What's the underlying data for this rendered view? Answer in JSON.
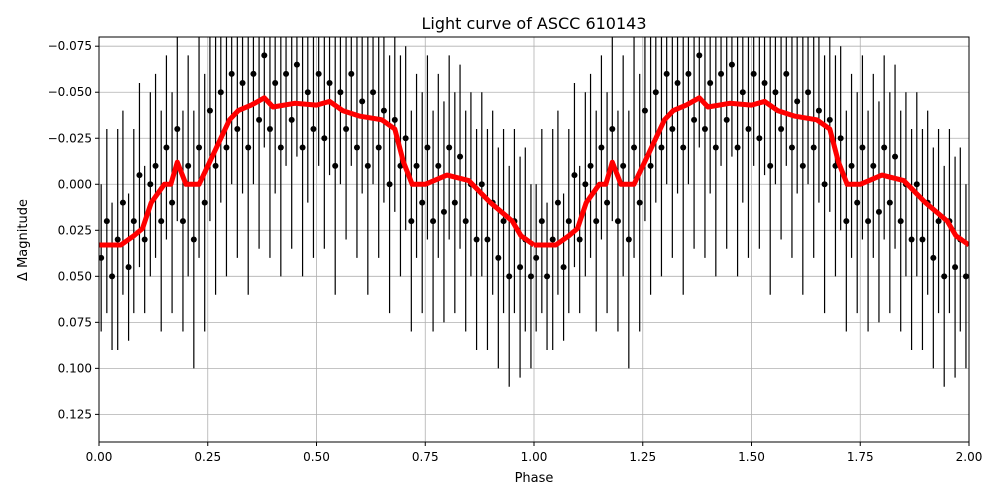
{
  "chart_data": {
    "type": "scatter",
    "title": "Light curve of ASCC 610143",
    "xlabel": "Phase",
    "ylabel": "Δ Magnitude",
    "xlim": [
      0,
      2
    ],
    "ylim": [
      -0.08,
      0.14
    ],
    "y_inverted": true,
    "grid": true,
    "x_ticks": [
      "0.00",
      "0.25",
      "0.50",
      "0.75",
      "1.00",
      "1.25",
      "1.50",
      "1.75",
      "2.00"
    ],
    "y_ticks": [
      "−0.075",
      "−0.050",
      "−0.025",
      "0.000",
      "0.025",
      "0.050",
      "0.075",
      "0.100",
      "0.125"
    ],
    "points_color": "#000000",
    "binned_color": "#ff0000",
    "phase_repeat": true,
    "points": [
      [
        0.005,
        0.04,
        0.04
      ],
      [
        0.018,
        0.02,
        0.05
      ],
      [
        0.03,
        0.05,
        0.04
      ],
      [
        0.043,
        0.03,
        0.06
      ],
      [
        0.055,
        0.01,
        0.05
      ],
      [
        0.068,
        0.045,
        0.04
      ],
      [
        0.08,
        0.02,
        0.05
      ],
      [
        0.093,
        -0.005,
        0.05
      ],
      [
        0.105,
        0.03,
        0.04
      ],
      [
        0.118,
        0.0,
        0.05
      ],
      [
        0.13,
        -0.01,
        0.05
      ],
      [
        0.143,
        0.02,
        0.06
      ],
      [
        0.155,
        -0.02,
        0.05
      ],
      [
        0.168,
        0.01,
        0.06
      ],
      [
        0.18,
        -0.03,
        0.05
      ],
      [
        0.193,
        0.02,
        0.06
      ],
      [
        0.205,
        -0.01,
        0.06
      ],
      [
        0.218,
        0.03,
        0.07
      ],
      [
        0.23,
        -0.02,
        0.06
      ],
      [
        0.243,
        0.01,
        0.07
      ],
      [
        0.255,
        -0.04,
        0.06
      ],
      [
        0.268,
        -0.01,
        0.07
      ],
      [
        0.28,
        -0.05,
        0.06
      ],
      [
        0.293,
        -0.02,
        0.07
      ],
      [
        0.305,
        -0.06,
        0.06
      ],
      [
        0.318,
        -0.03,
        0.07
      ],
      [
        0.33,
        -0.055,
        0.06
      ],
      [
        0.343,
        -0.02,
        0.08
      ],
      [
        0.355,
        -0.06,
        0.06
      ],
      [
        0.368,
        -0.035,
        0.07
      ],
      [
        0.38,
        -0.07,
        0.05
      ],
      [
        0.393,
        -0.03,
        0.07
      ],
      [
        0.405,
        -0.055,
        0.06
      ],
      [
        0.418,
        -0.02,
        0.07
      ],
      [
        0.43,
        -0.06,
        0.05
      ],
      [
        0.443,
        -0.035,
        0.07
      ],
      [
        0.455,
        -0.065,
        0.05
      ],
      [
        0.468,
        -0.02,
        0.07
      ],
      [
        0.48,
        -0.05,
        0.06
      ],
      [
        0.493,
        -0.03,
        0.07
      ],
      [
        0.505,
        -0.06,
        0.05
      ],
      [
        0.518,
        -0.025,
        0.06
      ],
      [
        0.53,
        -0.055,
        0.05
      ],
      [
        0.543,
        -0.01,
        0.07
      ],
      [
        0.555,
        -0.05,
        0.05
      ],
      [
        0.568,
        -0.03,
        0.06
      ],
      [
        0.58,
        -0.06,
        0.05
      ],
      [
        0.593,
        -0.02,
        0.06
      ],
      [
        0.605,
        -0.045,
        0.05
      ],
      [
        0.618,
        -0.01,
        0.07
      ],
      [
        0.63,
        -0.05,
        0.05
      ],
      [
        0.643,
        -0.02,
        0.06
      ],
      [
        0.655,
        -0.04,
        0.05
      ],
      [
        0.668,
        0.0,
        0.07
      ],
      [
        0.68,
        -0.035,
        0.05
      ],
      [
        0.693,
        -0.01,
        0.06
      ],
      [
        0.705,
        -0.025,
        0.05
      ],
      [
        0.718,
        0.02,
        0.06
      ],
      [
        0.73,
        -0.01,
        0.05
      ],
      [
        0.743,
        0.01,
        0.06
      ],
      [
        0.755,
        -0.02,
        0.05
      ],
      [
        0.768,
        0.02,
        0.06
      ],
      [
        0.78,
        -0.01,
        0.05
      ],
      [
        0.793,
        0.015,
        0.06
      ],
      [
        0.805,
        -0.02,
        0.05
      ],
      [
        0.818,
        0.01,
        0.06
      ],
      [
        0.83,
        -0.015,
        0.05
      ],
      [
        0.843,
        0.02,
        0.06
      ],
      [
        0.855,
        0.0,
        0.05
      ],
      [
        0.868,
        0.03,
        0.06
      ],
      [
        0.88,
        0.0,
        0.05
      ],
      [
        0.893,
        0.03,
        0.06
      ],
      [
        0.905,
        0.01,
        0.05
      ],
      [
        0.918,
        0.04,
        0.06
      ],
      [
        0.93,
        0.02,
        0.05
      ],
      [
        0.943,
        0.05,
        0.06
      ],
      [
        0.955,
        0.02,
        0.05
      ],
      [
        0.968,
        0.045,
        0.06
      ],
      [
        0.98,
        0.03,
        0.05
      ],
      [
        0.993,
        0.05,
        0.05
      ]
    ],
    "binned_curve": [
      [
        0.0,
        0.033
      ],
      [
        0.05,
        0.033
      ],
      [
        0.08,
        0.028
      ],
      [
        0.1,
        0.024
      ],
      [
        0.12,
        0.01
      ],
      [
        0.15,
        0.0
      ],
      [
        0.165,
        0.0
      ],
      [
        0.18,
        -0.012
      ],
      [
        0.2,
        0.0
      ],
      [
        0.23,
        0.0
      ],
      [
        0.25,
        -0.01
      ],
      [
        0.28,
        -0.025
      ],
      [
        0.3,
        -0.035
      ],
      [
        0.32,
        -0.04
      ],
      [
        0.35,
        -0.043
      ],
      [
        0.38,
        -0.047
      ],
      [
        0.4,
        -0.042
      ],
      [
        0.45,
        -0.044
      ],
      [
        0.5,
        -0.043
      ],
      [
        0.53,
        -0.045
      ],
      [
        0.56,
        -0.04
      ],
      [
        0.6,
        -0.037
      ],
      [
        0.65,
        -0.035
      ],
      [
        0.68,
        -0.03
      ],
      [
        0.7,
        -0.012
      ],
      [
        0.72,
        0.0
      ],
      [
        0.75,
        0.0
      ],
      [
        0.8,
        -0.005
      ],
      [
        0.85,
        -0.002
      ],
      [
        0.9,
        0.01
      ],
      [
        0.95,
        0.02
      ],
      [
        0.97,
        0.028
      ],
      [
        1.0,
        0.033
      ]
    ]
  }
}
